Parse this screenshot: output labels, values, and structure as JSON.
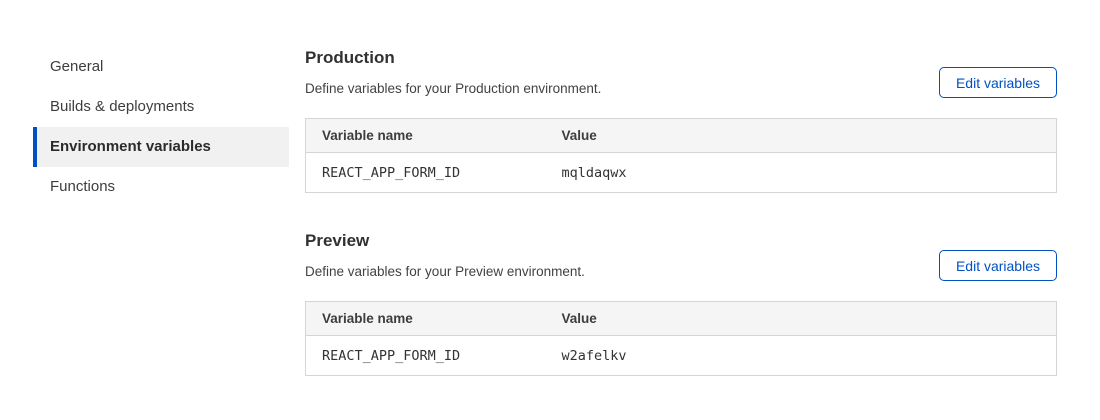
{
  "colors": {
    "accent_blue": "#0051c3",
    "active_item_bg": "#f1f1f1",
    "table_header_bg": "#f5f5f5",
    "table_border": "#d5d5d5"
  },
  "sidebar": {
    "items": [
      {
        "label": "General",
        "active": false
      },
      {
        "label": "Builds & deployments",
        "active": false
      },
      {
        "label": "Environment variables",
        "active": true
      },
      {
        "label": "Functions",
        "active": false
      }
    ]
  },
  "sections": [
    {
      "title": "Production",
      "description": "Define variables for your Production environment.",
      "button_label": "Edit variables",
      "table": {
        "columns": [
          "Variable name",
          "Value"
        ],
        "rows": [
          {
            "name": "REACT_APP_FORM_ID",
            "value": "mqldaqwx"
          }
        ]
      }
    },
    {
      "title": "Preview",
      "description": "Define variables for your Preview environment.",
      "button_label": "Edit variables",
      "table": {
        "columns": [
          "Variable name",
          "Value"
        ],
        "rows": [
          {
            "name": "REACT_APP_FORM_ID",
            "value": "w2afelkv"
          }
        ]
      }
    }
  ]
}
